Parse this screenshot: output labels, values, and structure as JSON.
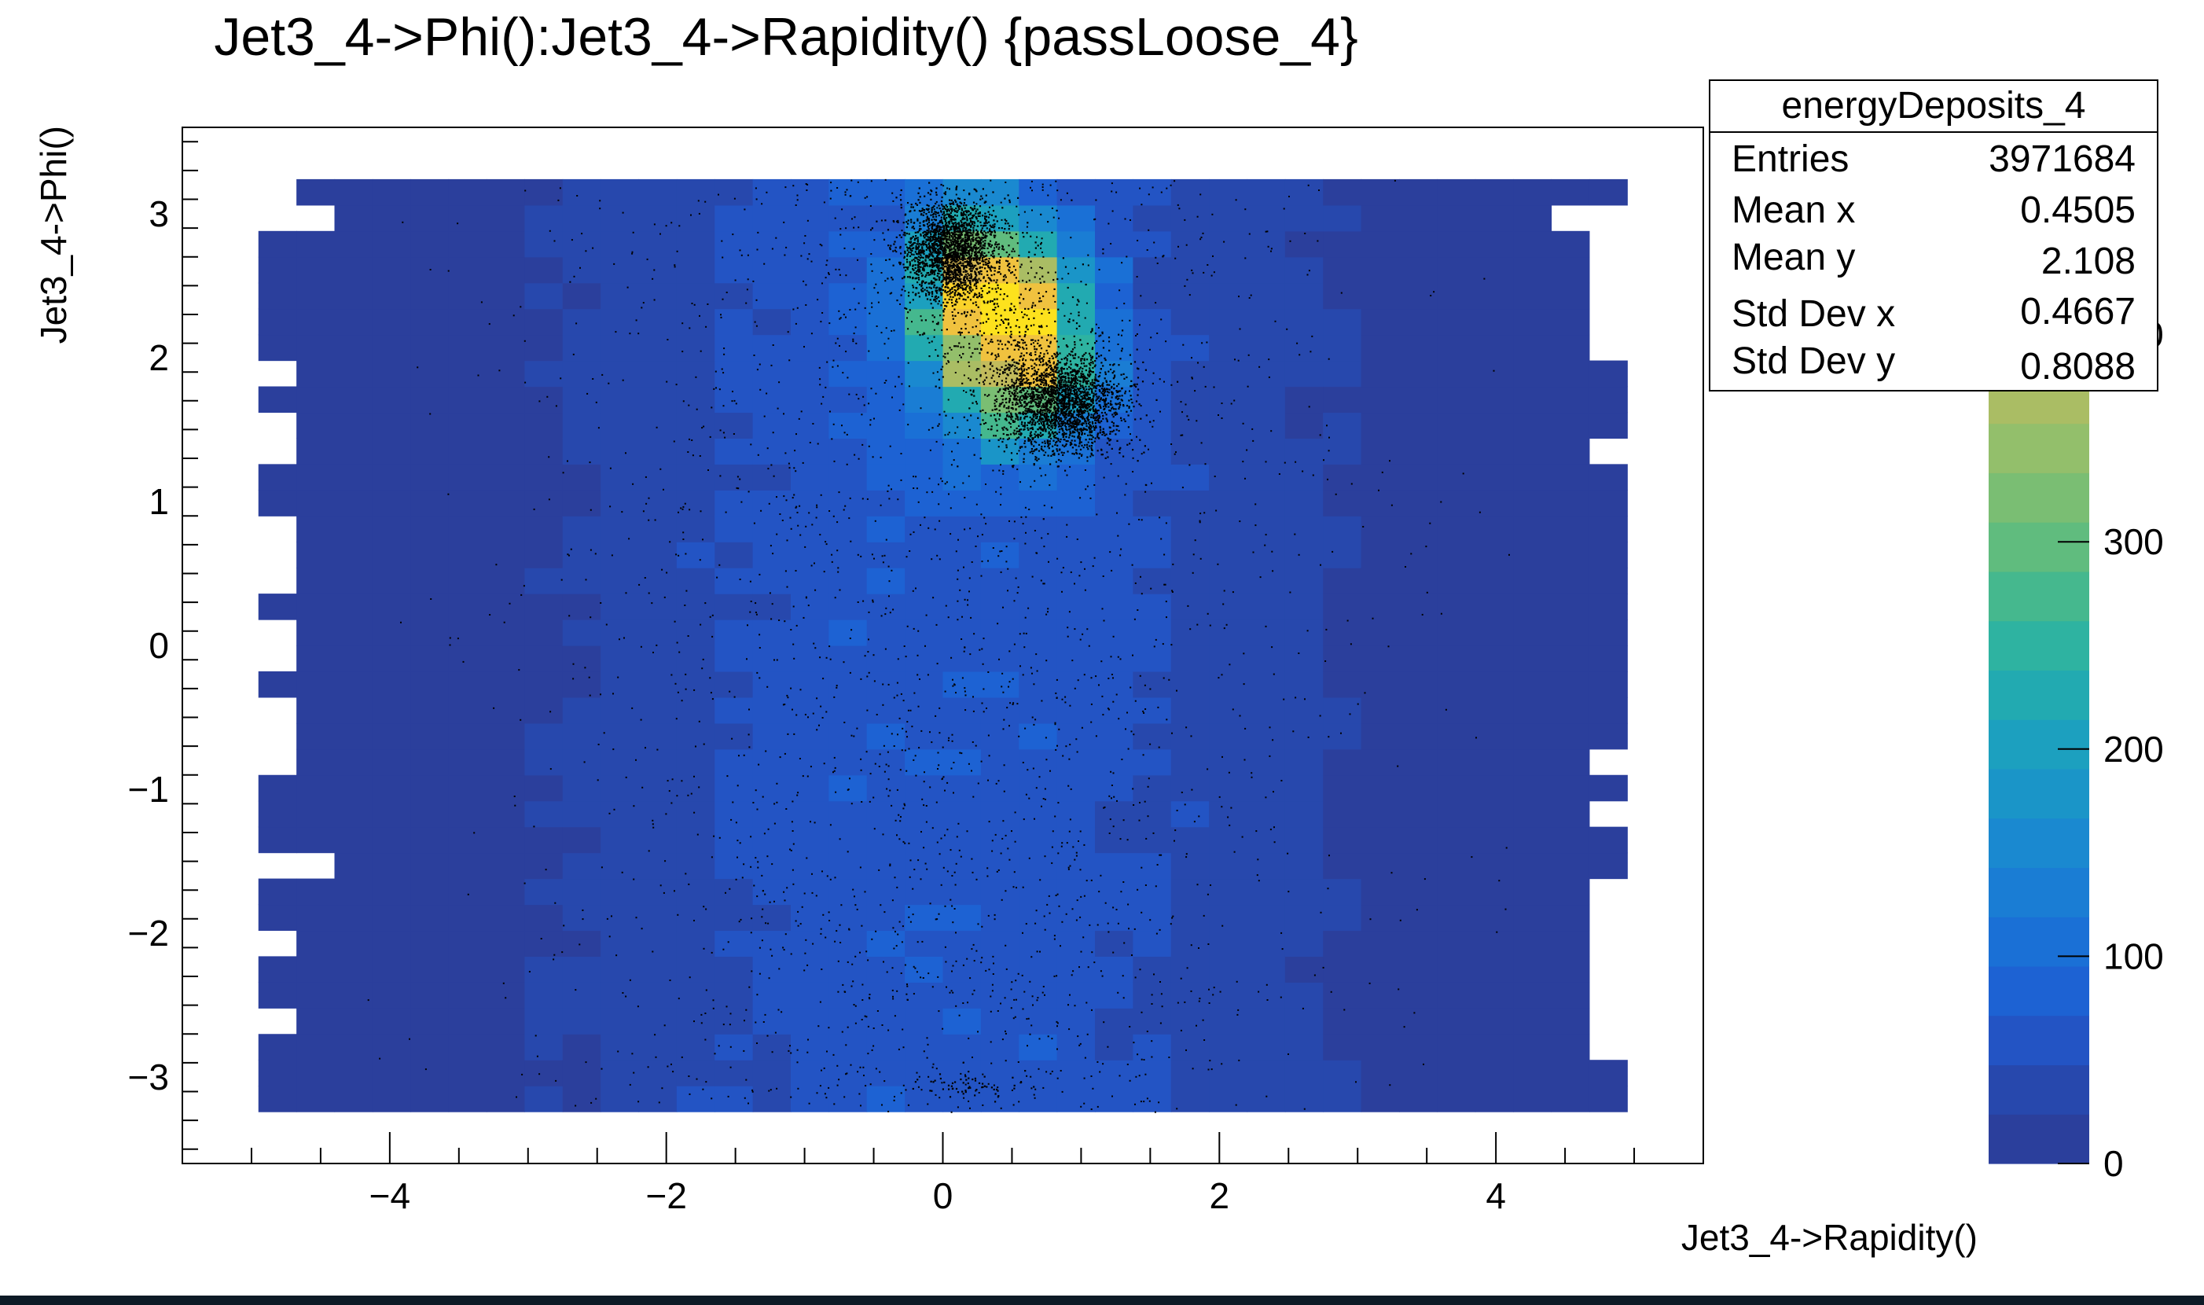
{
  "chart_data": {
    "type": "heatmap",
    "title": "Jet3_4->Phi():Jet3_4->Rapidity() {passLoose_4}",
    "xlabel": "Jet3_4->Rapidity()",
    "ylabel": "Jet3_4->Phi()",
    "xlim": [
      -5.5,
      5.5
    ],
    "ylim": [
      -3.6,
      3.6
    ],
    "x_ticks": [
      -4,
      -2,
      0,
      2,
      4
    ],
    "y_ticks": [
      -3,
      -2,
      -1,
      0,
      1,
      2,
      3
    ],
    "x_tick_labels": [
      "−4",
      "−2",
      "0",
      "2",
      "4"
    ],
    "y_tick_labels": [
      "−3",
      "−2",
      "−1",
      "0",
      "1",
      "2",
      "3"
    ],
    "bins": {
      "x_range": [
        -4.95,
        4.95
      ],
      "nx": 36,
      "y_range": [
        -3.24,
        3.24
      ],
      "ny": 36
    },
    "colorbar": {
      "min": 0,
      "max": 500,
      "ticks": [
        0,
        100,
        200,
        300,
        400
      ],
      "tick_labels": [
        "0",
        "100",
        "200",
        "300",
        "400"
      ]
    },
    "color_scale": [
      "#2b3f9c",
      "#2748ad",
      "#2354c4",
      "#1d62d3",
      "#1a70d6",
      "#1a7dd4",
      "#1a89d0",
      "#1a95c8",
      "#1ca0bf",
      "#22aab1",
      "#2eb3a1",
      "#45b88e",
      "#60bc7e",
      "#7abe73",
      "#93bf6b",
      "#aabd64",
      "#c2bb5c",
      "#d8b953",
      "#f0c23f",
      "#fad22a",
      "#fde21d"
    ],
    "density_model": {
      "background_level": 55,
      "background_x_sigma": 1.6,
      "edge_level": 12,
      "hotspots": [
        {
          "x": 0.45,
          "y": 2.2,
          "sx": 0.38,
          "sy": 0.45,
          "amp": 420
        },
        {
          "x": 0.2,
          "y": 2.6,
          "sx": 0.3,
          "sy": 0.35,
          "amp": 120
        },
        {
          "x": 0.75,
          "y": 1.8,
          "sx": 0.3,
          "sy": 0.3,
          "amp": 110
        }
      ]
    },
    "scatter_overlay": {
      "color": "#000000",
      "clusters": [
        {
          "x": 0.05,
          "y": 2.75,
          "sx": 0.17,
          "sy": 0.17,
          "n": 2200
        },
        {
          "x": 0.85,
          "y": 1.7,
          "sx": 0.22,
          "sy": 0.17,
          "n": 2400
        },
        {
          "x": 0.45,
          "y": 2.2,
          "sx": 0.3,
          "sy": 0.4,
          "n": 500
        },
        {
          "x": 0.2,
          "y": -3.05,
          "sx": 0.2,
          "sy": 0.05,
          "n": 60
        }
      ],
      "background_points": 2600
    },
    "stats_box": {
      "title": "energyDeposits_4",
      "rows": [
        {
          "label": "Entries",
          "value": "3971684"
        },
        {
          "label": "Mean x",
          "value": "0.4505"
        },
        {
          "label": "Mean y",
          "value": "2.108"
        },
        {
          "label": "Std Dev x",
          "value": "0.4667"
        },
        {
          "label": "Std Dev y",
          "value": "0.8088"
        }
      ]
    }
  }
}
